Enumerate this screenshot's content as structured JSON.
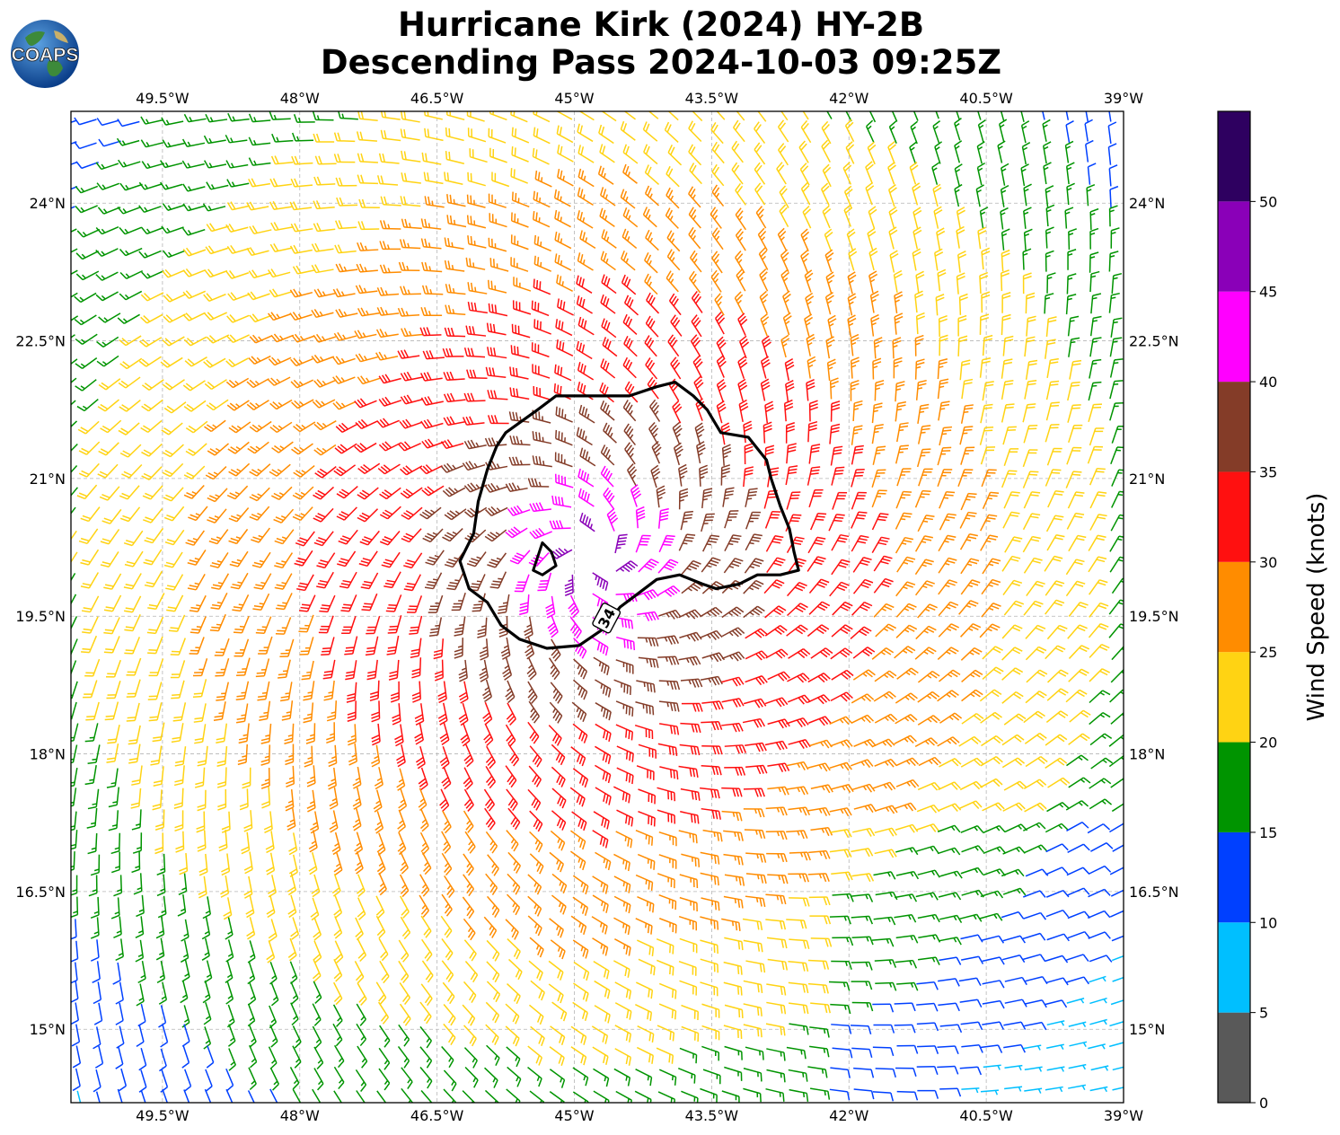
{
  "header": {
    "title_line1": "Hurricane Kirk (2024) HY-2B",
    "title_line2": "Descending Pass 2024-10-03 09:25Z",
    "logo_text": "COAPS"
  },
  "map": {
    "lon_range": [
      -50.5,
      -39.0
    ],
    "lat_range": [
      14.2,
      25.0
    ],
    "lon_ticks": [
      -49.5,
      -48.0,
      -46.5,
      -45.0,
      -43.5,
      -42.0,
      -40.5,
      -39.0
    ],
    "lat_ticks": [
      15.0,
      16.5,
      18.0,
      19.5,
      21.0,
      22.5,
      24.0
    ],
    "lon_tick_labels": [
      "49.5°W",
      "48°W",
      "46.5°W",
      "45°W",
      "43.5°W",
      "42°W",
      "40.5°W",
      "39°W"
    ],
    "lat_tick_labels": [
      "15°N",
      "16.5°N",
      "18°N",
      "19.5°N",
      "21°N",
      "22.5°N",
      "24°N"
    ],
    "gridlines": true,
    "storm_center": {
      "lon": -44.8,
      "lat": 20.1
    },
    "wind_field": "cyclonic counter-clockwise wind barbs, speed decreasing outward from the center",
    "contour_34kt": {
      "label": "34",
      "points": [
        [
          -45.75,
          21.5
        ],
        [
          -45.4,
          21.75
        ],
        [
          -45.2,
          21.9
        ],
        [
          -44.8,
          21.9
        ],
        [
          -44.4,
          21.9
        ],
        [
          -44.1,
          22.0
        ],
        [
          -43.9,
          22.05
        ],
        [
          -43.7,
          21.9
        ],
        [
          -43.55,
          21.75
        ],
        [
          -43.4,
          21.5
        ],
        [
          -43.1,
          21.45
        ],
        [
          -42.9,
          21.2
        ],
        [
          -42.85,
          21.0
        ],
        [
          -42.75,
          20.7
        ],
        [
          -42.65,
          20.45
        ],
        [
          -42.6,
          20.2
        ],
        [
          -42.55,
          20.0
        ],
        [
          -42.75,
          19.95
        ],
        [
          -43.0,
          19.95
        ],
        [
          -43.2,
          19.85
        ],
        [
          -43.45,
          19.8
        ],
        [
          -43.6,
          19.85
        ],
        [
          -43.85,
          19.95
        ],
        [
          -44.1,
          19.9
        ],
        [
          -44.3,
          19.75
        ],
        [
          -44.5,
          19.6
        ],
        [
          -44.7,
          19.35
        ],
        [
          -44.95,
          19.18
        ],
        [
          -45.3,
          19.15
        ],
        [
          -45.6,
          19.25
        ],
        [
          -45.8,
          19.4
        ],
        [
          -45.95,
          19.65
        ],
        [
          -46.15,
          19.8
        ],
        [
          -46.25,
          20.1
        ],
        [
          -46.1,
          20.4
        ],
        [
          -46.05,
          20.75
        ],
        [
          -45.95,
          21.1
        ],
        [
          -45.85,
          21.35
        ],
        [
          -45.75,
          21.5
        ]
      ],
      "inner_ring": [
        [
          -45.35,
          20.3
        ],
        [
          -45.25,
          20.2
        ],
        [
          -45.2,
          20.05
        ],
        [
          -45.35,
          19.95
        ],
        [
          -45.45,
          20.0
        ],
        [
          -45.4,
          20.15
        ],
        [
          -45.35,
          20.3
        ]
      ]
    }
  },
  "colorbar": {
    "label": "Wind Speed (knots)",
    "levels": [
      0,
      5,
      10,
      15,
      20,
      25,
      30,
      35,
      40,
      45,
      50
    ],
    "tick_labels": [
      "0",
      "5",
      "10",
      "15",
      "20",
      "25",
      "30",
      "35",
      "40",
      "45",
      "50"
    ],
    "bins": [
      {
        "from": 0,
        "to": 5,
        "color": "#595959"
      },
      {
        "from": 5,
        "to": 10,
        "color": "#00bfff"
      },
      {
        "from": 10,
        "to": 15,
        "color": "#0040ff"
      },
      {
        "from": 15,
        "to": 20,
        "color": "#009400"
      },
      {
        "from": 20,
        "to": 25,
        "color": "#ffd313"
      },
      {
        "from": 25,
        "to": 30,
        "color": "#ff8c00"
      },
      {
        "from": 30,
        "to": 35,
        "color": "#ff1010"
      },
      {
        "from": 35,
        "to": 40,
        "color": "#843c28"
      },
      {
        "from": 40,
        "to": 45,
        "color": "#ff00ff"
      },
      {
        "from": 45,
        "to": 50,
        "color": "#8a00b8"
      },
      {
        "from": 50,
        "to": 55,
        "color": "#2e0060"
      }
    ]
  }
}
